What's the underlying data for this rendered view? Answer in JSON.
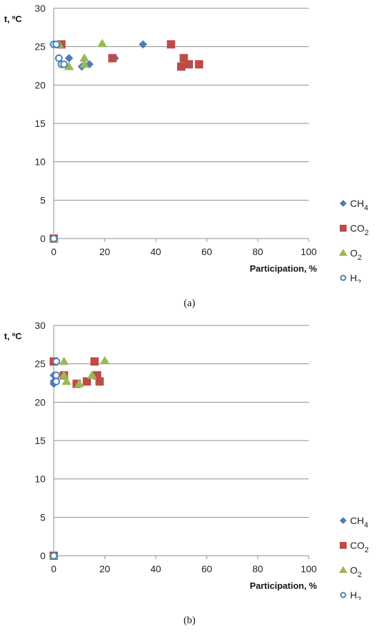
{
  "colors": {
    "CH4": "#4a7ebb",
    "CO2": "#be4b48",
    "O2": "#98b954",
    "H2": "#4a7ebb",
    "grid": "#8c8c8c"
  },
  "chart_data": [
    {
      "type": "scatter",
      "caption": "(a)",
      "ylabel": "t, ºC",
      "xlabel": "Participation,  %",
      "xlim": [
        0,
        100
      ],
      "ylim": [
        0,
        30
      ],
      "xticks": [
        0,
        20,
        40,
        60,
        80,
        100
      ],
      "yticks": [
        0,
        5,
        10,
        15,
        20,
        25,
        30
      ],
      "grid": "horizontal",
      "legend_position": "right",
      "series": [
        {
          "name": "CH4",
          "label": "CH",
          "sub": "4",
          "marker": "diamond",
          "points": [
            [
              0,
              0
            ],
            [
              0,
              25.3
            ],
            [
              6,
              23.5
            ],
            [
              11,
              22.4
            ],
            [
              14,
              22.7
            ],
            [
              24,
              23.5
            ],
            [
              35,
              25.3
            ]
          ]
        },
        {
          "name": "CO2",
          "label": "CO",
          "sub": "2",
          "marker": "square",
          "points": [
            [
              0,
              0
            ],
            [
              3,
              25.3
            ],
            [
              23,
              23.5
            ],
            [
              46,
              25.3
            ],
            [
              50,
              22.4
            ],
            [
              51,
              23.5
            ],
            [
              53,
              22.7
            ],
            [
              57,
              22.7
            ]
          ]
        },
        {
          "name": "O2",
          "label": "O",
          "sub": "2",
          "marker": "triangle",
          "points": [
            [
              0,
              0
            ],
            [
              2,
              25.3
            ],
            [
              6,
              22.4
            ],
            [
              12,
              22.7
            ],
            [
              12,
              23.5
            ],
            [
              19,
              25.4
            ]
          ]
        },
        {
          "name": "H2",
          "label": "H",
          "sub": "2",
          "marker": "circle",
          "points": [
            [
              0,
              0
            ],
            [
              0,
              25.3
            ],
            [
              1,
              25.3
            ],
            [
              2,
              23.5
            ],
            [
              3,
              22.7
            ],
            [
              4,
              22.7
            ]
          ]
        }
      ]
    },
    {
      "type": "scatter",
      "caption": "(b)",
      "ylabel": "t, ºC",
      "xlabel": "Participation,  %",
      "xlim": [
        0,
        100
      ],
      "ylim": [
        0,
        30
      ],
      "xticks": [
        0,
        20,
        40,
        60,
        80,
        100
      ],
      "yticks": [
        0,
        5,
        10,
        15,
        20,
        25,
        30
      ],
      "grid": "horizontal",
      "legend_position": "right",
      "series": [
        {
          "name": "CH4",
          "label": "CH",
          "sub": "4",
          "marker": "diamond",
          "points": [
            [
              0,
              0
            ],
            [
              0,
              22.4
            ],
            [
              0,
              22.7
            ],
            [
              0,
              23.5
            ],
            [
              0,
              25.3
            ]
          ]
        },
        {
          "name": "CO2",
          "label": "CO",
          "sub": "2",
          "marker": "square",
          "points": [
            [
              0,
              0
            ],
            [
              0,
              25.3
            ],
            [
              4,
              23.5
            ],
            [
              9,
              22.4
            ],
            [
              13,
              22.7
            ],
            [
              16,
              25.3
            ],
            [
              17,
              23.5
            ],
            [
              18,
              22.7
            ]
          ]
        },
        {
          "name": "O2",
          "label": "O",
          "sub": "2",
          "marker": "triangle",
          "points": [
            [
              0,
              0
            ],
            [
              4,
              25.3
            ],
            [
              4,
              23.5
            ],
            [
              5,
              22.7
            ],
            [
              10,
              22.4
            ],
            [
              15,
              23.5
            ],
            [
              20,
              25.4
            ]
          ]
        },
        {
          "name": "H2",
          "label": "H",
          "sub": "2",
          "marker": "circle",
          "points": [
            [
              0,
              0
            ],
            [
              1,
              25.3
            ],
            [
              1,
              22.7
            ],
            [
              1,
              23.5
            ]
          ]
        }
      ]
    }
  ]
}
